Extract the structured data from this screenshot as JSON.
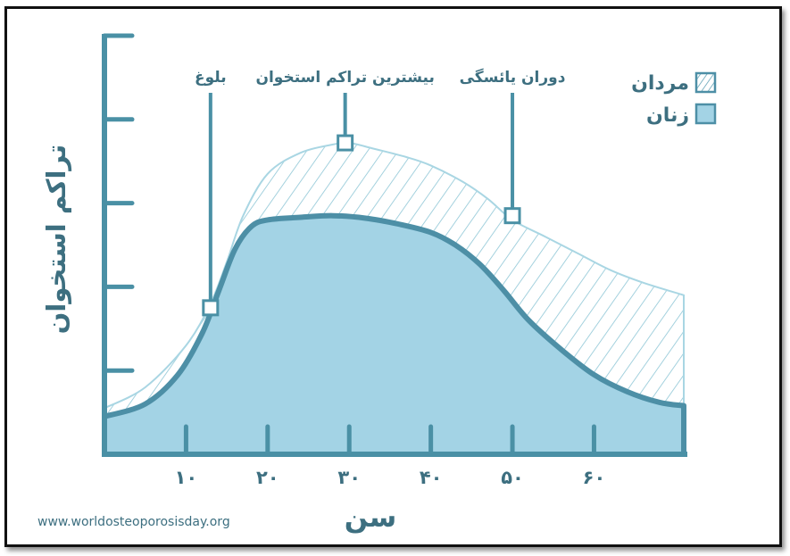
{
  "colors": {
    "axis": "#4a90a5",
    "text": "#3d6f80",
    "women_fill": "#a3d3e5",
    "women_stroke": "#4d8fa6",
    "men_hatch": "#8ec6d6",
    "frame": "#111111"
  },
  "chart_data": {
    "type": "area",
    "xlabel": "سن",
    "ylabel": "تراکم استخوان",
    "title": "",
    "xlim": [
      0,
      71
    ],
    "ylim": [
      0,
      5
    ],
    "grid": false,
    "legend_position": "top-right",
    "x_ticks": [
      10,
      20,
      30,
      40,
      50,
      60
    ],
    "x_tick_labels": [
      "۱۰",
      "۲۰",
      "۳۰",
      "۴۰",
      "۵۰",
      "۶۰"
    ],
    "y_ticks": [
      1,
      2,
      3,
      4,
      5
    ],
    "series": [
      {
        "name": "مردان",
        "pattern": "hatched",
        "x": [
          0,
          5,
          10,
          13,
          15,
          17,
          20,
          24,
          28,
          30,
          33,
          37,
          40,
          44,
          47,
          50,
          54,
          58,
          62,
          66,
          71
        ],
        "y": [
          0.55,
          0.8,
          1.3,
          1.8,
          2.3,
          2.85,
          3.35,
          3.6,
          3.7,
          3.72,
          3.65,
          3.55,
          3.45,
          3.25,
          3.05,
          2.8,
          2.6,
          2.4,
          2.2,
          2.05,
          1.9
        ]
      },
      {
        "name": "زنان",
        "pattern": "solid",
        "x": [
          0,
          5,
          9,
          12,
          14,
          16,
          18,
          20,
          24,
          28,
          32,
          36,
          40,
          43,
          46,
          49,
          52,
          56,
          60,
          64,
          68,
          71
        ],
        "y": [
          0.45,
          0.6,
          0.95,
          1.45,
          1.95,
          2.45,
          2.72,
          2.8,
          2.83,
          2.85,
          2.82,
          2.75,
          2.65,
          2.5,
          2.27,
          1.95,
          1.6,
          1.25,
          0.95,
          0.75,
          0.62,
          0.58
        ]
      }
    ],
    "annotations": [
      {
        "label": "بلوغ",
        "x": 13,
        "y": 1.75
      },
      {
        "label": "بیشترین تراکم استخوان",
        "x": 29.5,
        "y": 3.72
      },
      {
        "label": "دوران یائسگی",
        "x": 50,
        "y": 2.85
      }
    ]
  },
  "legend": {
    "items": [
      {
        "label": "مردان",
        "pattern": "hatched"
      },
      {
        "label": "زنان",
        "pattern": "solid"
      }
    ]
  },
  "footer": {
    "source": "www.worldosteoporosisday.org"
  }
}
